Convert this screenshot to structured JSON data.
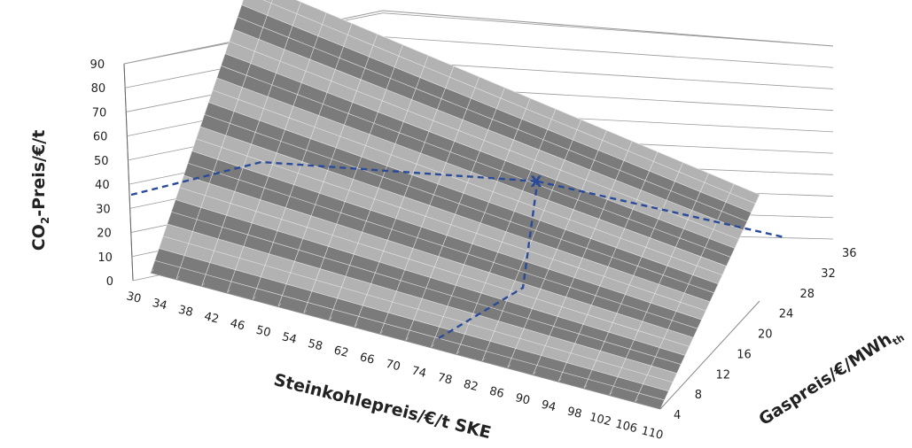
{
  "chart_data": {
    "type": "surface",
    "ylabel": "CO2-Preis/€/t",
    "xlabel": "Steinkohlepreis/€/t SKE",
    "zlabel": "Gaspreis/€/MWhth",
    "y_ticks": [
      "0",
      "10",
      "20",
      "30",
      "40",
      "50",
      "60",
      "70",
      "80",
      "90"
    ],
    "x_ticks": [
      "30",
      "34",
      "38",
      "42",
      "46",
      "50",
      "54",
      "58",
      "62",
      "66",
      "70",
      "74",
      "78",
      "82",
      "86",
      "90",
      "94",
      "98",
      "102",
      "106",
      "110"
    ],
    "z_ticks": [
      "4",
      "8",
      "12",
      "16",
      "20",
      "24",
      "28",
      "32",
      "36"
    ],
    "ylim": [
      0,
      90
    ],
    "xlim": [
      30,
      110
    ],
    "zlim": [
      4,
      36
    ],
    "surface_corners": {
      "coal_30_gas_4": 0,
      "coal_110_gas_4": 0,
      "coal_30_gas_36": 90,
      "coal_110_gas_36": 52
    },
    "band_colors": [
      "#7b7b7b",
      "#b2b2b2"
    ],
    "marker": {
      "label": "X",
      "coal_price": 80,
      "gas_price": 26,
      "co2_price": 50
    },
    "guide_color": "#2a4a9a",
    "grid": true
  }
}
